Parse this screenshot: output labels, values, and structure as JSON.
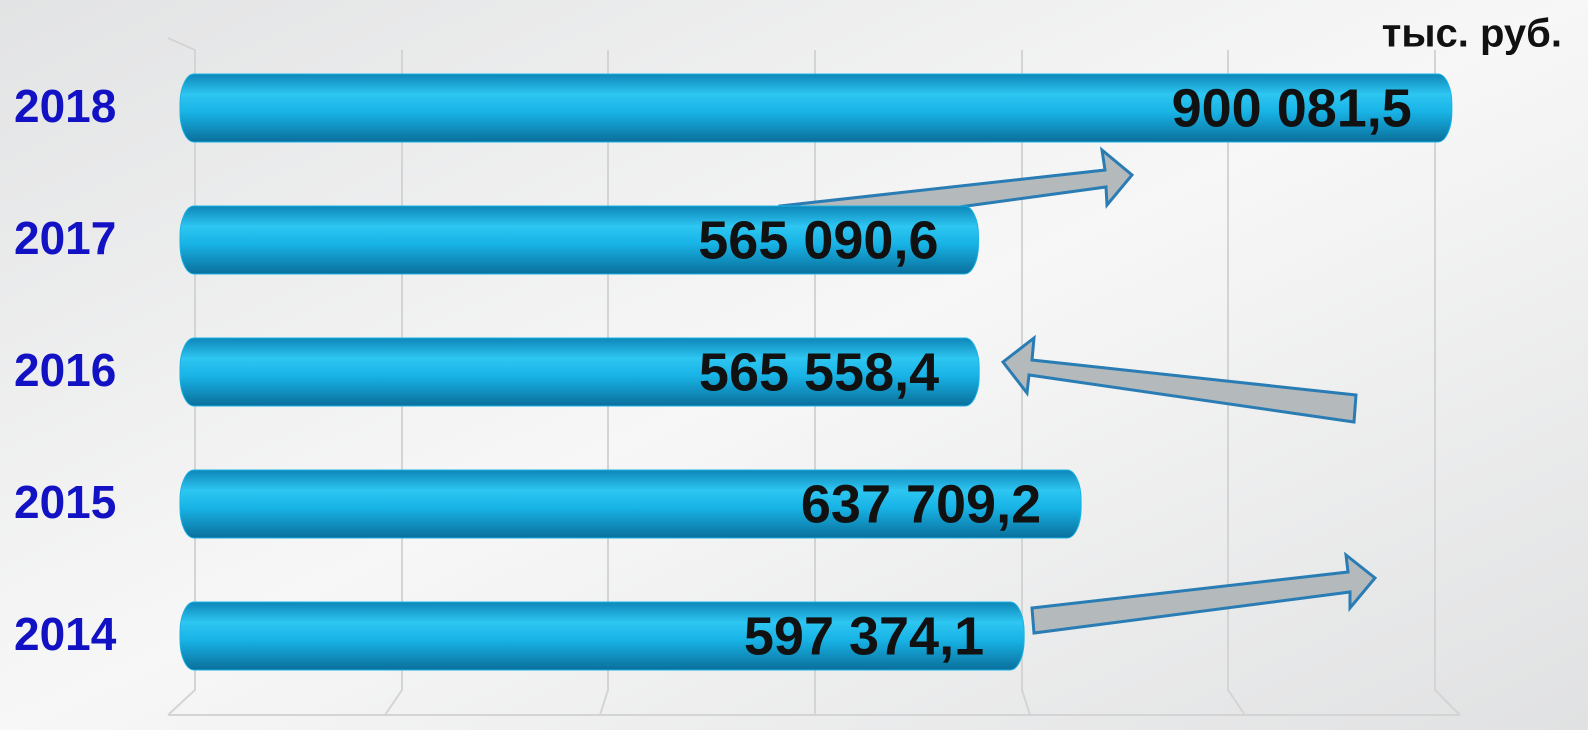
{
  "chart_data": {
    "type": "barh",
    "unit": "тыс. руб.",
    "categories": [
      "2018",
      "2017",
      "2016",
      "2015",
      "2014"
    ],
    "values": [
      900081.5,
      565090.6,
      565558.4,
      637709.2,
      597374.1
    ],
    "value_labels": [
      "900 081,5",
      "565 090,6",
      "565 558,4",
      "637 709,2",
      "597 374,1"
    ],
    "color": "#19b2e4",
    "xlim": [
      0,
      920000
    ]
  }
}
